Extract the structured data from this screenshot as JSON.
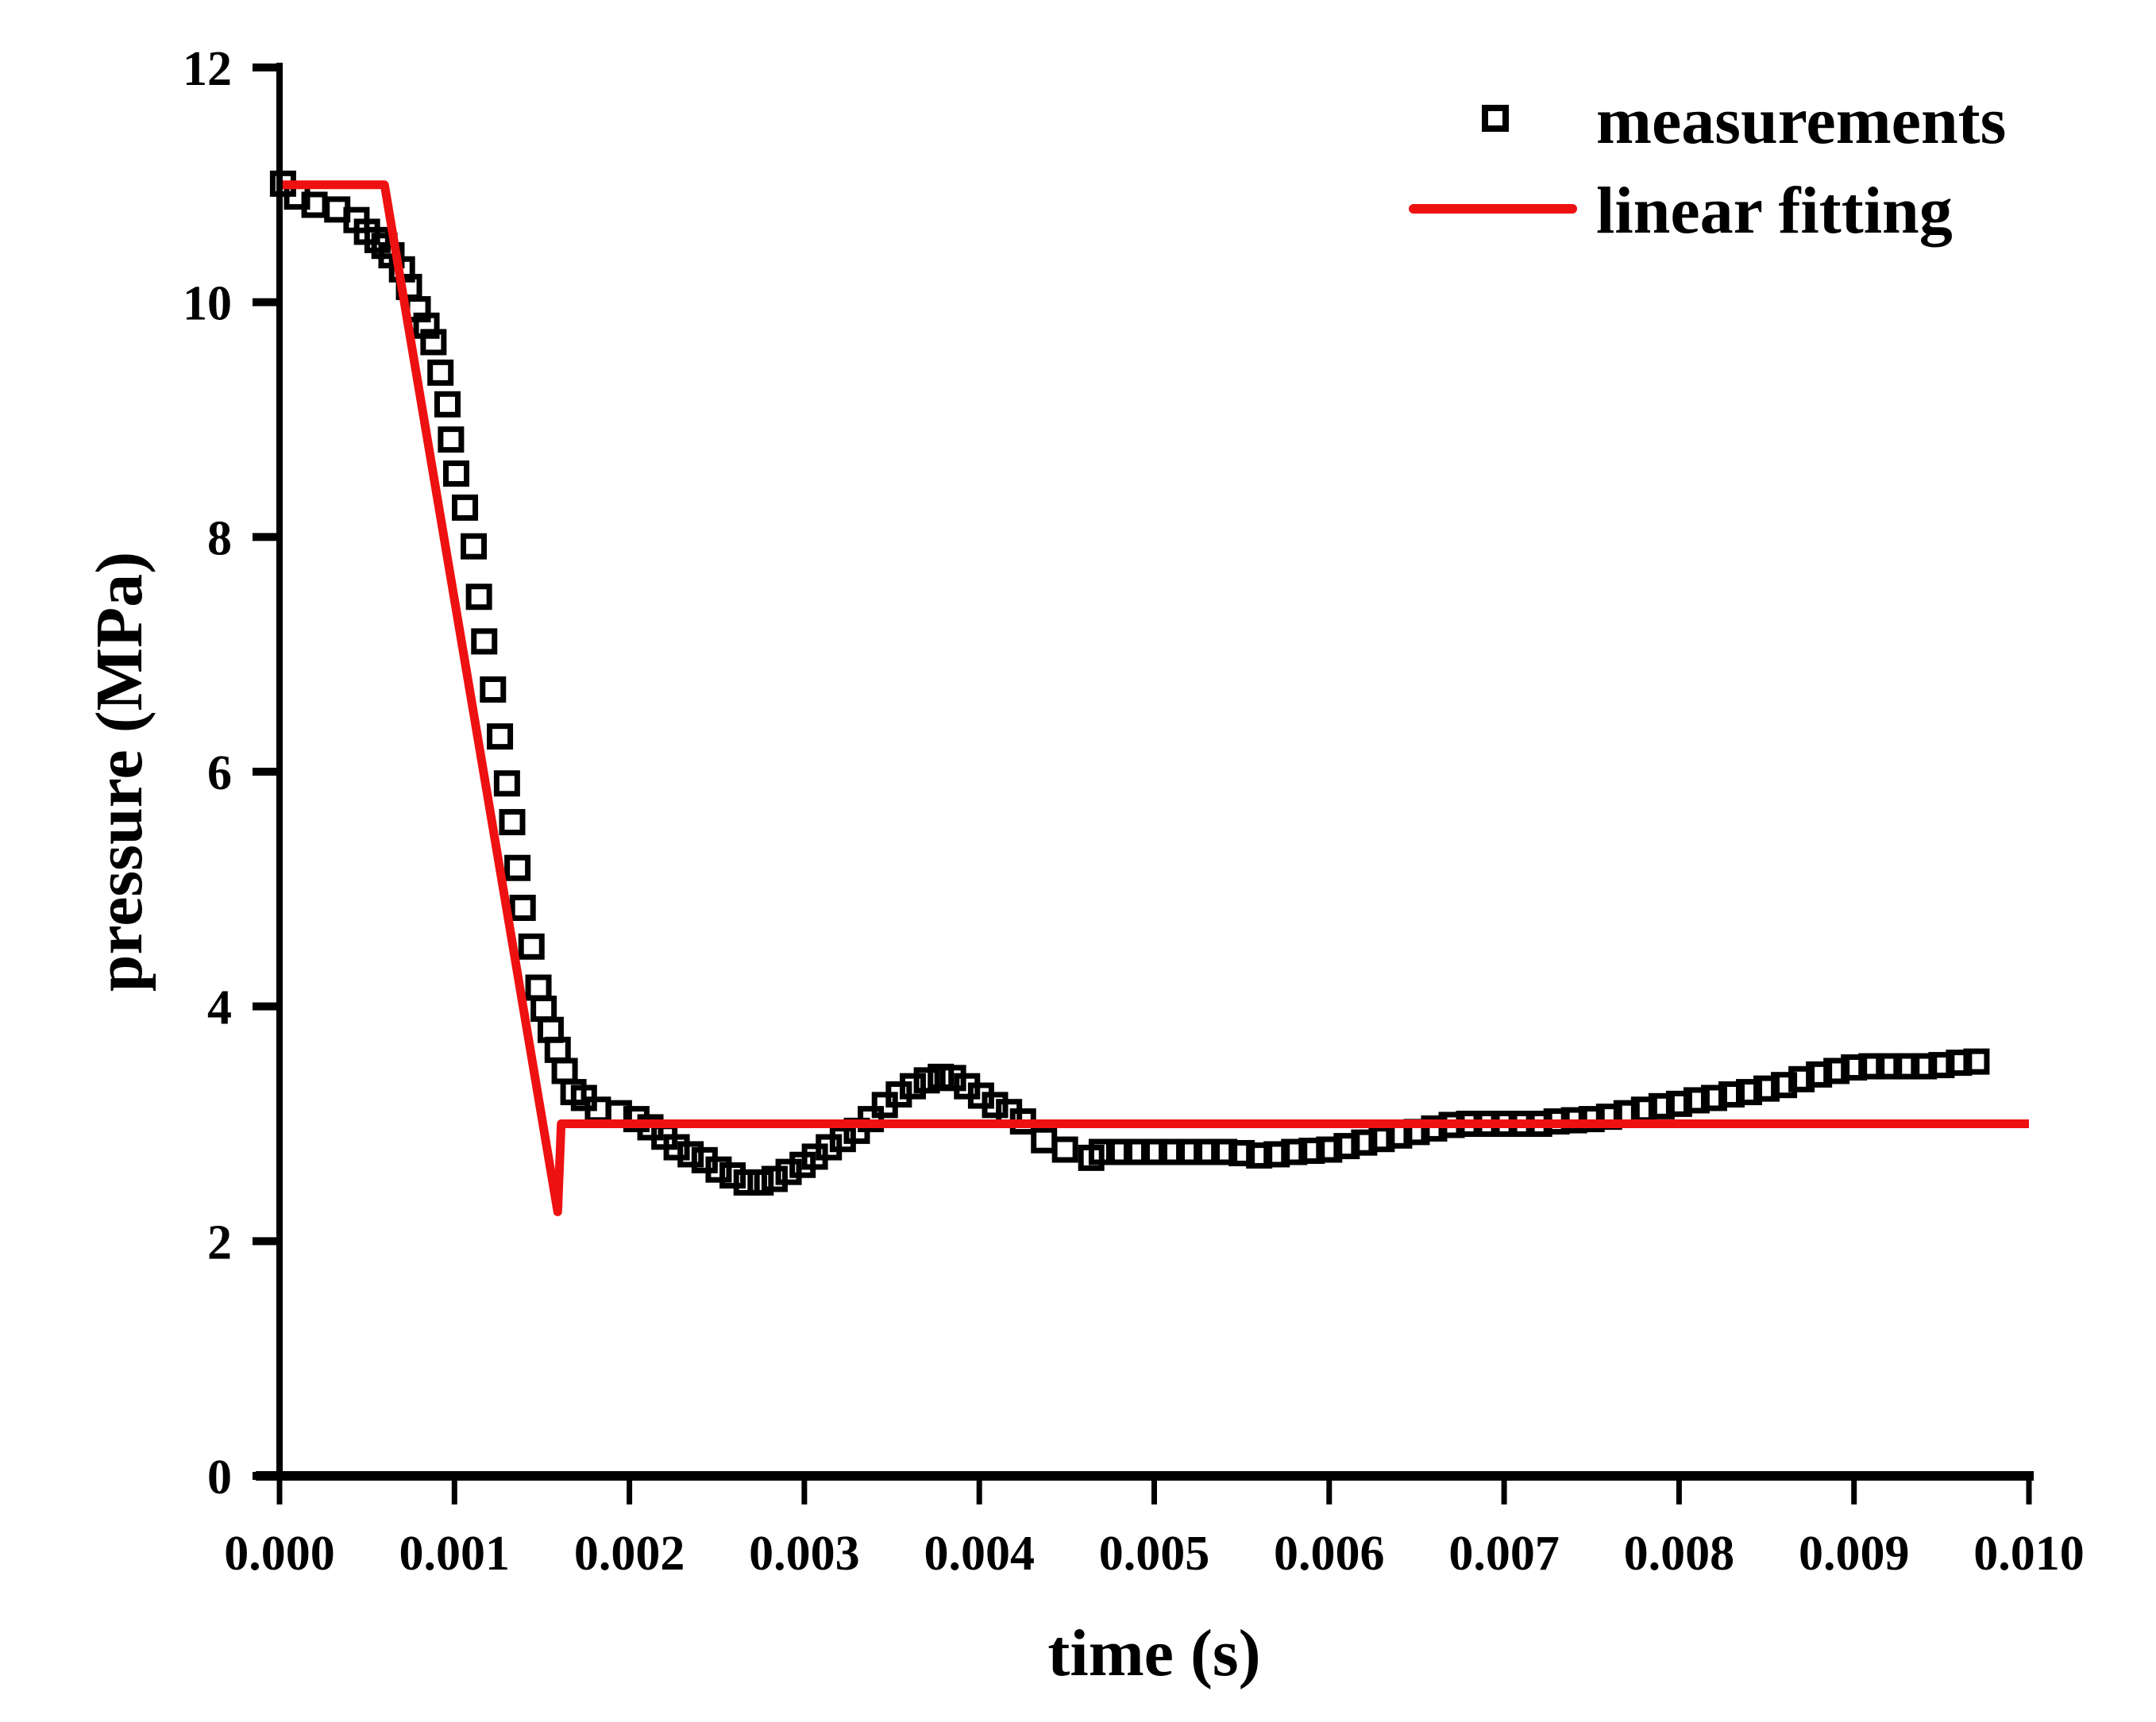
{
  "chart_data": {
    "type": "scatter",
    "title": "",
    "xlabel": "time (s)",
    "ylabel": "pressure (MPa)",
    "xlim": [
      0,
      0.01
    ],
    "ylim": [
      0,
      12
    ],
    "grid": false,
    "legend_position": "top-right",
    "x_ticks": [
      "0.000",
      "0.001",
      "0.002",
      "0.003",
      "0.004",
      "0.005",
      "0.006",
      "0.007",
      "0.008",
      "0.009",
      "0.010"
    ],
    "x_tick_values": [
      0,
      0.001,
      0.002,
      0.003,
      0.004,
      0.005,
      0.006,
      0.007,
      0.008,
      0.009,
      0.01
    ],
    "y_ticks": [
      "0",
      "2",
      "4",
      "6",
      "8",
      "10",
      "12"
    ],
    "y_tick_values": [
      0,
      2,
      4,
      6,
      8,
      10,
      12
    ],
    "series": [
      {
        "name": "measurements",
        "kind": "scatter",
        "marker": "open-square",
        "color": "#000000",
        "points": [
          [
            2e-05,
            11.01
          ],
          [
            0.0001,
            10.9
          ],
          [
            0.0002,
            10.83
          ],
          [
            0.00033,
            10.79
          ],
          [
            0.00044,
            10.7
          ],
          [
            0.0005,
            10.6
          ],
          [
            0.00056,
            10.53
          ],
          [
            0.0006,
            10.48
          ],
          [
            0.00064,
            10.4
          ],
          [
            0.0007,
            10.28
          ],
          [
            0.00074,
            10.13
          ],
          [
            0.00079,
            9.94
          ],
          [
            0.00084,
            9.8
          ],
          [
            0.00088,
            9.66
          ],
          [
            0.00092,
            9.4
          ],
          [
            0.00096,
            9.13
          ],
          [
            0.00098,
            8.83
          ],
          [
            0.00101,
            8.54
          ],
          [
            0.00106,
            8.25
          ],
          [
            0.00111,
            7.92
          ],
          [
            0.00114,
            7.49
          ],
          [
            0.00117,
            7.11
          ],
          [
            0.00122,
            6.7
          ],
          [
            0.00126,
            6.3
          ],
          [
            0.0013,
            5.9
          ],
          [
            0.00133,
            5.57
          ],
          [
            0.00136,
            5.18
          ],
          [
            0.00139,
            4.84
          ],
          [
            0.00144,
            4.51
          ],
          [
            0.00148,
            4.16
          ],
          [
            0.00151,
            3.98
          ],
          [
            0.00155,
            3.8
          ],
          [
            0.00159,
            3.63
          ],
          [
            0.00163,
            3.45
          ],
          [
            0.00168,
            3.27
          ],
          [
            0.00174,
            3.22
          ],
          [
            0.00182,
            3.12
          ],
          [
            0.00194,
            3.09
          ],
          [
            0.00204,
            3.04
          ],
          [
            0.00212,
            2.97
          ],
          [
            0.0022,
            2.89
          ],
          [
            0.00227,
            2.8
          ],
          [
            0.00235,
            2.74
          ],
          [
            0.00243,
            2.69
          ],
          [
            0.00251,
            2.61
          ],
          [
            0.00259,
            2.56
          ],
          [
            0.00267,
            2.5
          ],
          [
            0.00275,
            2.5
          ],
          [
            0.00283,
            2.53
          ],
          [
            0.00291,
            2.59
          ],
          [
            0.00299,
            2.65
          ],
          [
            0.00306,
            2.72
          ],
          [
            0.00314,
            2.8
          ],
          [
            0.00322,
            2.87
          ],
          [
            0.0033,
            2.94
          ],
          [
            0.00338,
            3.04
          ],
          [
            0.00346,
            3.16
          ],
          [
            0.00354,
            3.25
          ],
          [
            0.00362,
            3.32
          ],
          [
            0.0037,
            3.37
          ],
          [
            0.00378,
            3.4
          ],
          [
            0.00385,
            3.39
          ],
          [
            0.00393,
            3.32
          ],
          [
            0.00401,
            3.24
          ],
          [
            0.00409,
            3.16
          ],
          [
            0.00417,
            3.1
          ],
          [
            0.00425,
            3.02
          ],
          [
            0.00437,
            2.86
          ],
          [
            0.00449,
            2.78
          ],
          [
            0.00464,
            2.71
          ],
          [
            0.0047,
            2.76
          ],
          [
            0.0048,
            2.76
          ],
          [
            0.0049,
            2.76
          ],
          [
            0.005,
            2.76
          ],
          [
            0.0051,
            2.76
          ],
          [
            0.0052,
            2.76
          ],
          [
            0.0053,
            2.76
          ],
          [
            0.0054,
            2.76
          ],
          [
            0.0055,
            2.75
          ],
          [
            0.0056,
            2.73
          ],
          [
            0.0057,
            2.74
          ],
          [
            0.0058,
            2.76
          ],
          [
            0.0059,
            2.77
          ],
          [
            0.006,
            2.78
          ],
          [
            0.0061,
            2.81
          ],
          [
            0.0062,
            2.84
          ],
          [
            0.0063,
            2.87
          ],
          [
            0.0064,
            2.9
          ],
          [
            0.0065,
            2.93
          ],
          [
            0.0066,
            2.96
          ],
          [
            0.0067,
            2.99
          ],
          [
            0.0068,
            3.0
          ],
          [
            0.0069,
            3.0
          ],
          [
            0.007,
            3.0
          ],
          [
            0.0071,
            3.0
          ],
          [
            0.0072,
            3.0
          ],
          [
            0.0073,
            3.02
          ],
          [
            0.0074,
            3.03
          ],
          [
            0.0075,
            3.04
          ],
          [
            0.0076,
            3.06
          ],
          [
            0.0077,
            3.09
          ],
          [
            0.0078,
            3.12
          ],
          [
            0.0079,
            3.15
          ],
          [
            0.008,
            3.17
          ],
          [
            0.0081,
            3.2
          ],
          [
            0.0082,
            3.22
          ],
          [
            0.0083,
            3.25
          ],
          [
            0.0084,
            3.27
          ],
          [
            0.0085,
            3.3
          ],
          [
            0.0086,
            3.33
          ],
          [
            0.0087,
            3.38
          ],
          [
            0.0088,
            3.42
          ],
          [
            0.0089,
            3.45
          ],
          [
            0.009,
            3.48
          ],
          [
            0.0091,
            3.49
          ],
          [
            0.0092,
            3.49
          ],
          [
            0.0093,
            3.49
          ],
          [
            0.0094,
            3.49
          ],
          [
            0.0095,
            3.5
          ],
          [
            0.0096,
            3.52
          ],
          [
            0.0097,
            3.53
          ]
        ]
      },
      {
        "name": "linear fitting",
        "kind": "line",
        "color": "#ee1111",
        "points": [
          [
            0,
            11
          ],
          [
            0.0006,
            11
          ],
          [
            0.00159,
            2.25
          ],
          [
            0.00161,
            3.0
          ],
          [
            0.01,
            3.0
          ]
        ]
      }
    ]
  }
}
